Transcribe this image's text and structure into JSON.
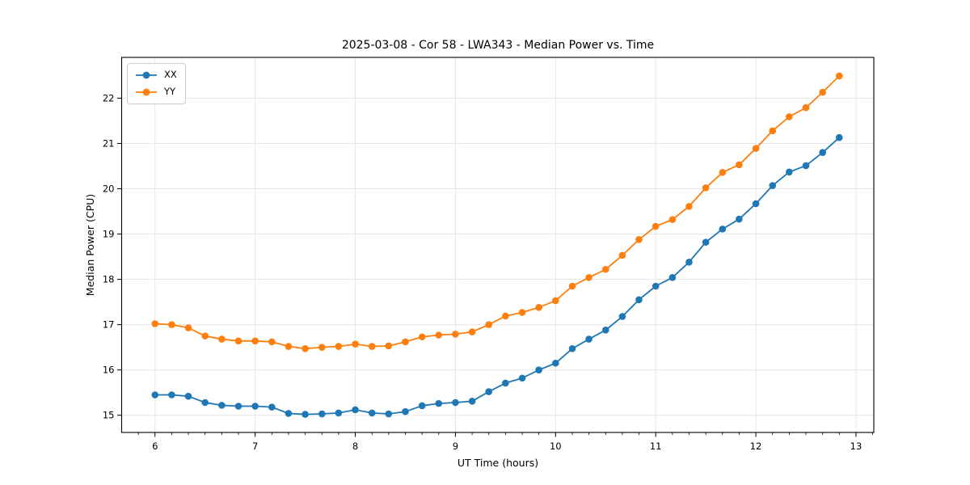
{
  "window": {
    "background": "#ffffff"
  },
  "chart_data": {
    "type": "line",
    "title": "2025-03-08 - Cor 58 - LWA343 - Median Power vs. Time",
    "xlabel": "UT Time (hours)",
    "ylabel": "Median Power (CPU)",
    "xlim": [
      5.667,
      13.178
    ],
    "ylim": [
      14.62,
      22.9
    ],
    "xticks": [
      6,
      7,
      8,
      9,
      10,
      11,
      12,
      13
    ],
    "yticks": [
      15,
      16,
      17,
      18,
      19,
      20,
      21,
      22
    ],
    "x_minor_step": 0.16667,
    "grid": true,
    "grid_color": "#e5e5e5",
    "axis_color": "#000000",
    "legend_position": "upper-left",
    "x": [
      6.0,
      6.167,
      6.333,
      6.5,
      6.667,
      6.833,
      7.0,
      7.167,
      7.333,
      7.5,
      7.667,
      7.833,
      8.0,
      8.167,
      8.333,
      8.5,
      8.667,
      8.833,
      9.0,
      9.167,
      9.333,
      9.5,
      9.667,
      9.833,
      10.0,
      10.167,
      10.333,
      10.5,
      10.667,
      10.833,
      11.0,
      11.167,
      11.333,
      11.5,
      11.667,
      11.833,
      12.0,
      12.167,
      12.333,
      12.5,
      12.667,
      12.833
    ],
    "series": [
      {
        "name": "XX",
        "color": "#1f77b4",
        "values": [
          15.45,
          15.45,
          15.42,
          15.28,
          15.22,
          15.2,
          15.2,
          15.18,
          15.04,
          15.02,
          15.03,
          15.05,
          15.12,
          15.05,
          15.03,
          15.08,
          15.21,
          15.26,
          15.28,
          15.31,
          15.52,
          15.71,
          15.82,
          16.0,
          16.15,
          16.47,
          16.68,
          16.88,
          17.18,
          17.55,
          17.85,
          18.04,
          18.38,
          18.82,
          19.11,
          19.33,
          19.67,
          20.07,
          20.37,
          20.51,
          20.8,
          21.13
        ]
      },
      {
        "name": "YY",
        "color": "#ff7f0e",
        "values": [
          17.02,
          17.0,
          16.93,
          16.75,
          16.68,
          16.64,
          16.64,
          16.62,
          16.52,
          16.47,
          16.5,
          16.52,
          16.57,
          16.52,
          16.53,
          16.62,
          16.73,
          16.77,
          16.79,
          16.84,
          17.0,
          17.19,
          17.27,
          17.38,
          17.53,
          17.85,
          18.04,
          18.22,
          18.53,
          18.88,
          19.17,
          19.32,
          19.61,
          20.02,
          20.36,
          20.53,
          20.89,
          21.28,
          21.59,
          21.79,
          22.13,
          22.49
        ]
      }
    ]
  }
}
